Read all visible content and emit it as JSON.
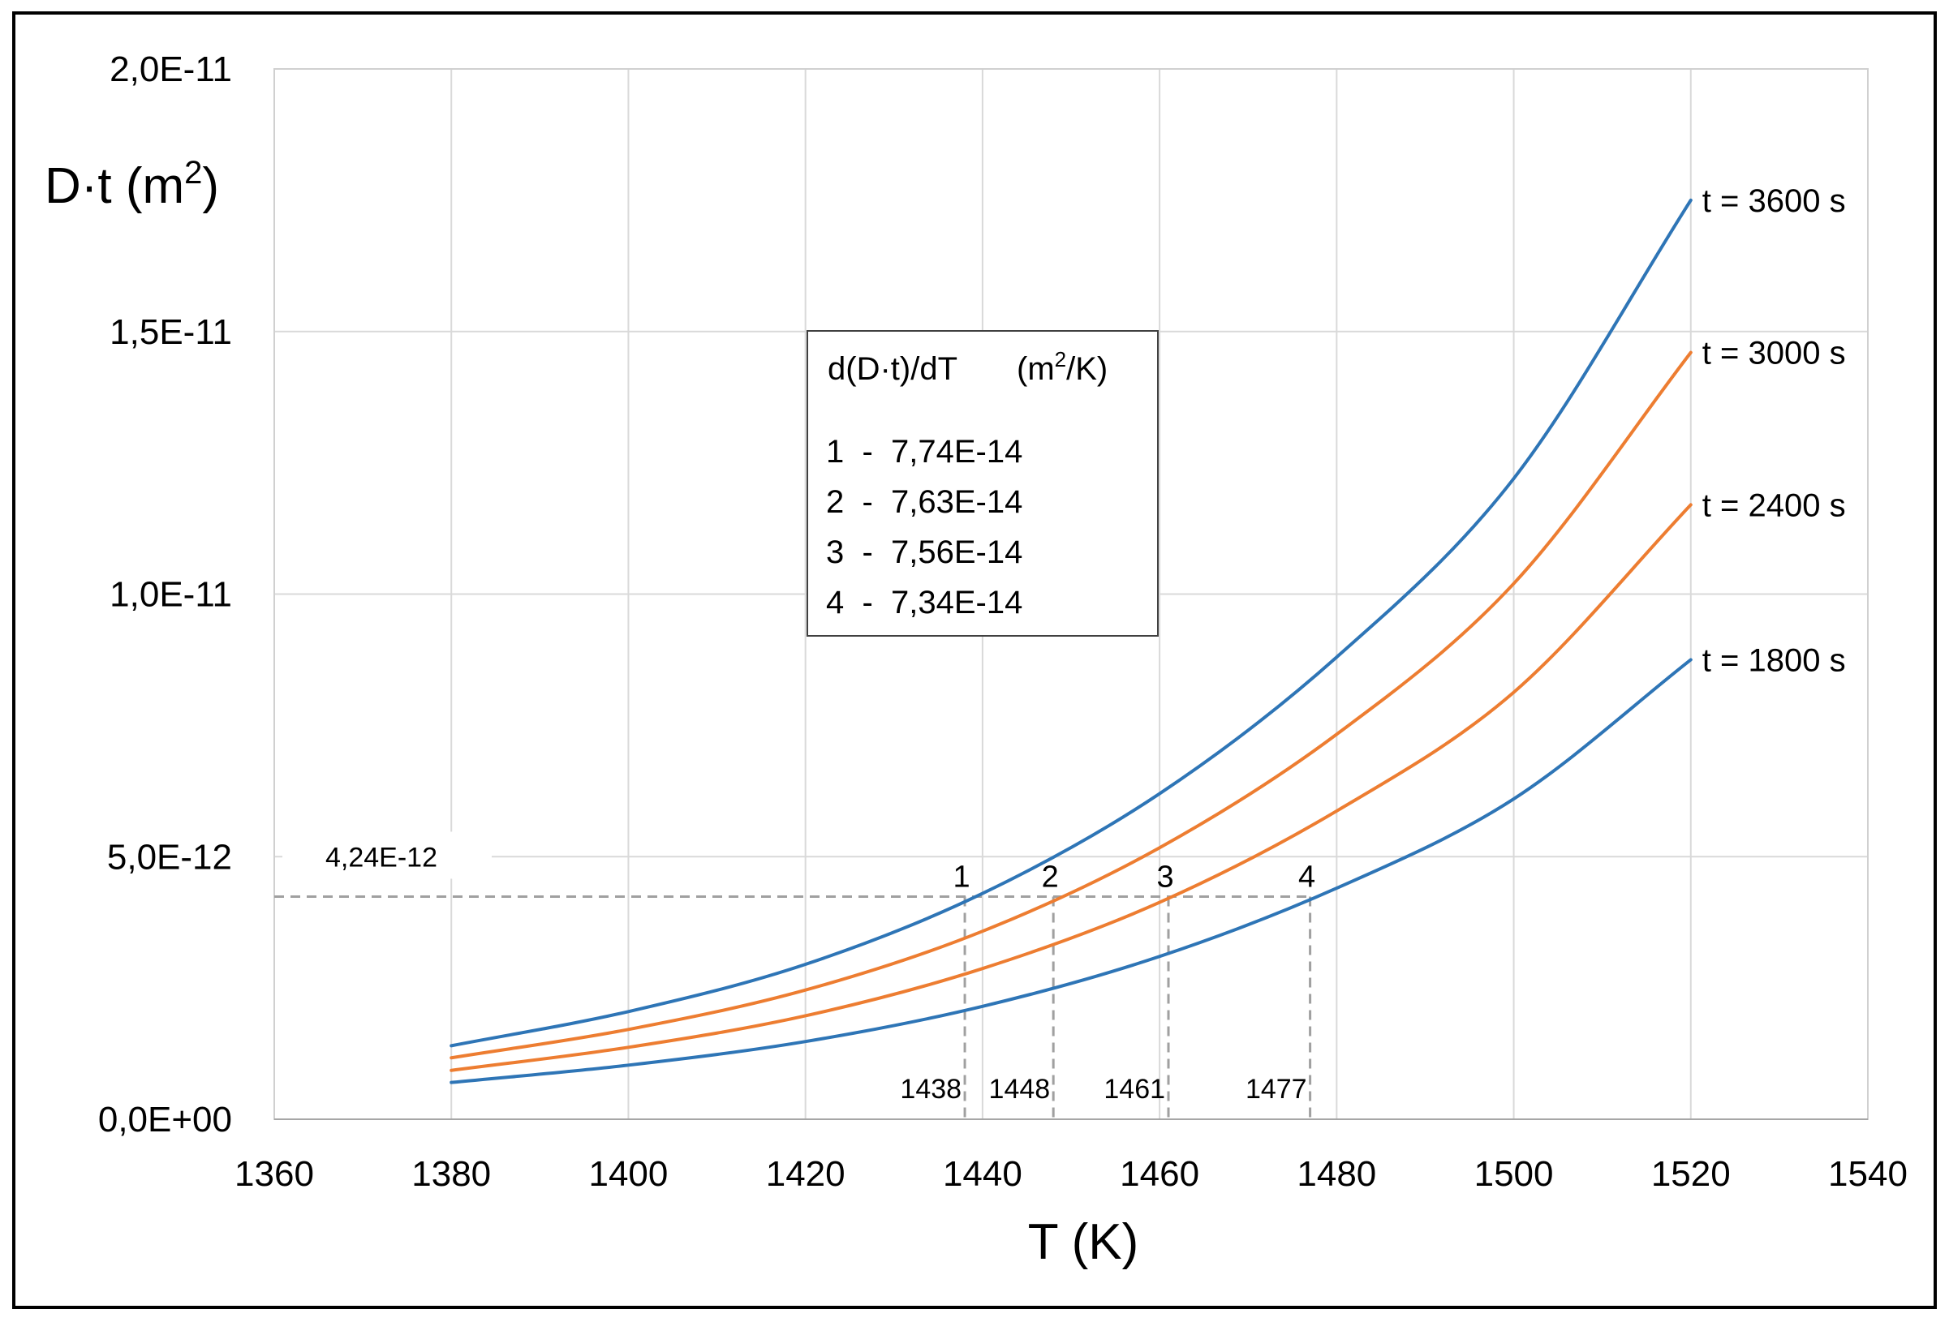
{
  "chart_data": {
    "type": "line",
    "xlabel": "T (K)",
    "ylabel_main": "D·t (m",
    "ylabel_sup": "2",
    "ylabel_close": ")",
    "xlim": [
      1360,
      1540
    ],
    "ylim": [
      0,
      2e-11
    ],
    "x_ticks": [
      1360,
      1380,
      1400,
      1420,
      1440,
      1460,
      1480,
      1500,
      1520,
      1540
    ],
    "x_tick_labels": [
      "1360",
      "1380",
      "1400",
      "1420",
      "1440",
      "1460",
      "1480",
      "1500",
      "1520",
      "1540"
    ],
    "y_ticks": [
      0,
      5e-12,
      1e-11,
      1.5e-11,
      2e-11
    ],
    "y_tick_labels": [
      "0,0E+00",
      "5,0E-12",
      "1,0E-11",
      "1,5E-11",
      "2,0E-11"
    ],
    "grid": true,
    "x": [
      1380,
      1400,
      1420,
      1440,
      1460,
      1480,
      1500,
      1520
    ],
    "series": [
      {
        "name": "t = 3600 s",
        "color": "#2E75B6",
        "values": [
          1.4e-12,
          2.05e-12,
          2.95e-12,
          4.3e-12,
          6.2e-12,
          8.8e-12,
          1.22e-11,
          1.75e-11
        ]
      },
      {
        "name": "t = 3000 s",
        "color": "#ED7D31",
        "values": [
          1.17e-12,
          1.71e-12,
          2.46e-12,
          3.58e-12,
          5.17e-12,
          7.33e-12,
          1.02e-11,
          1.46e-11
        ]
      },
      {
        "name": "t = 2400 s",
        "color": "#ED7D31",
        "values": [
          9.3e-13,
          1.37e-12,
          1.97e-12,
          2.87e-12,
          4.13e-12,
          5.87e-12,
          8.13e-12,
          1.17e-11
        ]
      },
      {
        "name": "t = 1800 s",
        "color": "#2E75B6",
        "values": [
          7e-13,
          1.03e-12,
          1.48e-12,
          2.15e-12,
          3.1e-12,
          4.4e-12,
          6.1e-12,
          8.75e-12
        ]
      }
    ],
    "reference_line": {
      "y": 4.24e-12,
      "label": "4,24E-12"
    },
    "intersections": [
      {
        "id": "1",
        "x": 1438,
        "label": "1438"
      },
      {
        "id": "2",
        "x": 1448,
        "label": "1448"
      },
      {
        "id": "3",
        "x": 1461,
        "label": "1461"
      },
      {
        "id": "4",
        "x": 1477,
        "label": "1477"
      }
    ],
    "info_box": {
      "title_a": "d(D·t)/dT",
      "title_b": "(m",
      "title_sup": "2",
      "title_c": "/K)",
      "rows": [
        "1  -  7,74E-14",
        "2  -  7,63E-14",
        "3  -  7,56E-14",
        "4  -  7,34E-14"
      ]
    }
  }
}
